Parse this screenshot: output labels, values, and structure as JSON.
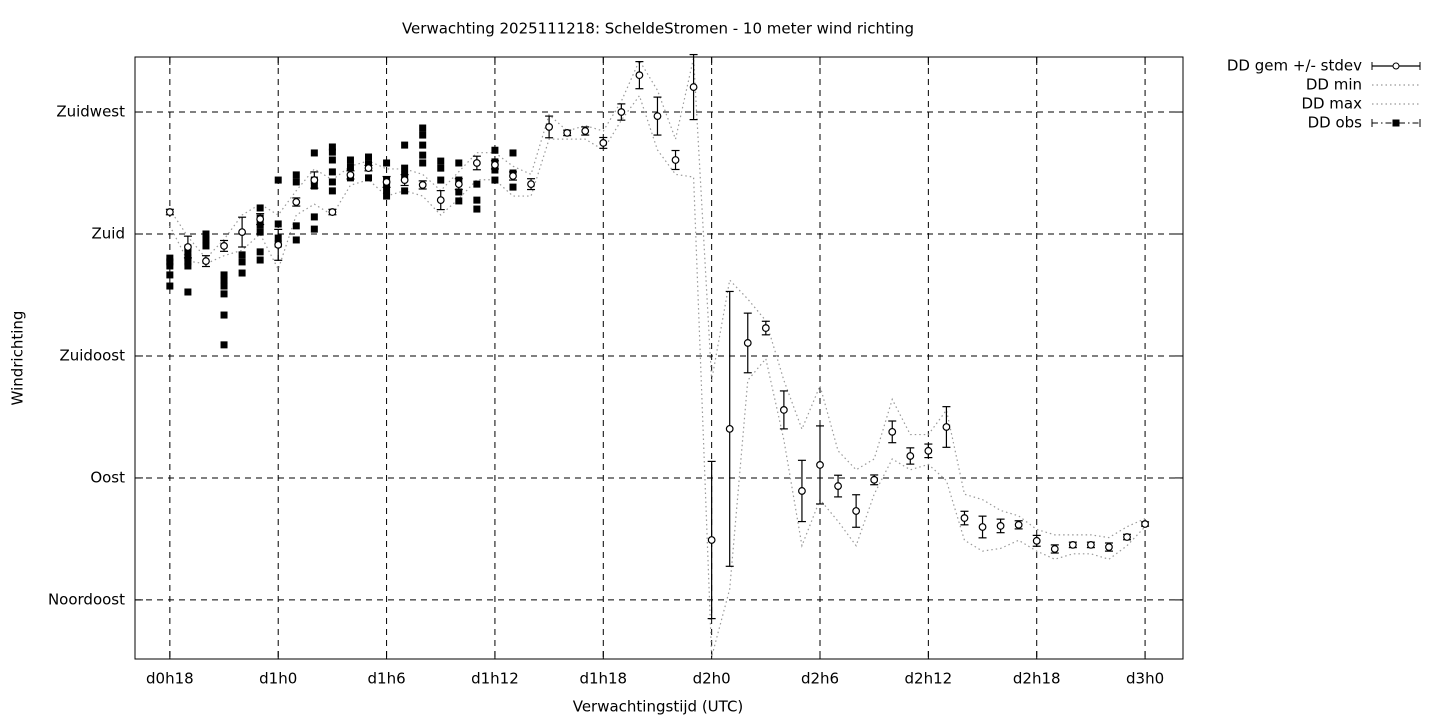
{
  "chart_data": {
    "type": "errorbar",
    "title": "Verwachting 2025111218: ScheldeStromen - 10 meter wind richting",
    "x_label": "Verwachtingstijd (UTC)",
    "y_label": "Windrichting",
    "xlim": [
      16.07,
      74.1
    ],
    "ylim": [
      23.2,
      245.3
    ],
    "xticks": [
      {
        "value": 18,
        "label": "d0h18"
      },
      {
        "value": 24,
        "label": "d1h0"
      },
      {
        "value": 30,
        "label": "d1h6"
      },
      {
        "value": 36,
        "label": "d1h12"
      },
      {
        "value": 42,
        "label": "d1h18"
      },
      {
        "value": 48,
        "label": "d2h0"
      },
      {
        "value": 54,
        "label": "d2h6"
      },
      {
        "value": 60,
        "label": "d2h12"
      },
      {
        "value": 66,
        "label": "d2h18"
      },
      {
        "value": 72,
        "label": "d3h0"
      }
    ],
    "yticks": [
      {
        "value": 45,
        "label": "Noordoost"
      },
      {
        "value": 90,
        "label": "Oost"
      },
      {
        "value": 135,
        "label": "Zuidoost"
      },
      {
        "value": 180,
        "label": "Zuid"
      },
      {
        "value": 225,
        "label": "Zuidwest"
      }
    ],
    "grid": true,
    "legend": "outside-right-top",
    "series": [
      {
        "name": "DD gem +/- stdev",
        "color": "#000000",
        "style": "errorbar",
        "x": [
          18,
          19,
          20,
          21,
          22,
          23,
          24,
          25,
          26,
          27,
          28,
          29,
          30,
          31,
          32,
          33,
          34,
          35,
          36,
          37,
          38,
          39,
          40,
          41,
          42,
          43,
          44,
          45,
          46,
          47,
          48,
          49,
          50,
          51,
          52,
          53,
          54,
          55,
          56,
          57,
          58,
          59,
          60,
          61,
          62,
          63,
          64,
          65,
          66,
          67,
          68,
          69,
          70,
          71,
          72
        ],
        "values": [
          188.1,
          175.2,
          170.0,
          175.6,
          180.7,
          185.5,
          176.0,
          191.8,
          199.9,
          188.1,
          201.8,
          204.3,
          199.2,
          199.9,
          198.1,
          192.5,
          198.4,
          206.2,
          205.5,
          201.4,
          198.4,
          219.5,
          217.3,
          218.0,
          213.6,
          225.0,
          238.6,
          223.5,
          207.3,
          234.2,
          67.1,
          108.1,
          139.8,
          145.3,
          115.1,
          85.2,
          94.8,
          87.0,
          77.8,
          89.3,
          107.0,
          98.1,
          100.0,
          108.8,
          75.2,
          71.9,
          72.3,
          72.7,
          66.8,
          63.8,
          65.3,
          65.3,
          64.5,
          68.2,
          73.0
        ],
        "errors": [
          1,
          4,
          2,
          2,
          5.5,
          2,
          5.7,
          1.5,
          3,
          1,
          1.5,
          1,
          2,
          2,
          1.5,
          3.5,
          2,
          2.5,
          1.5,
          1.5,
          2,
          4,
          1,
          1.5,
          2,
          3,
          5,
          7,
          3.5,
          12,
          29,
          50.7,
          11,
          2.5,
          7,
          11.3,
          14.4,
          4,
          6,
          1.8,
          4,
          3,
          2.5,
          7.5,
          2.5,
          4,
          2.5,
          1.5,
          2,
          1.5,
          1,
          1,
          1.5,
          1,
          0.8
        ]
      },
      {
        "name": "DD min",
        "color": "#999999",
        "style": "dotted",
        "x": [
          18,
          19,
          20,
          21,
          22,
          23,
          24,
          25,
          26,
          27,
          28,
          29,
          30,
          31,
          32,
          33,
          34,
          35,
          36,
          37,
          38,
          39,
          40,
          41,
          42,
          43,
          44,
          45,
          46,
          47,
          48,
          49,
          50,
          51,
          52,
          53,
          54,
          55,
          56,
          57,
          58,
          59,
          60,
          61,
          62,
          63,
          64,
          65,
          66,
          67,
          68,
          69,
          70,
          71,
          72
        ],
        "values": [
          183,
          170,
          169,
          172,
          174,
          180,
          167,
          187,
          191,
          187,
          198,
          200,
          194,
          196,
          194,
          187,
          193,
          200,
          200,
          194,
          194,
          215,
          215,
          215,
          211,
          222,
          231,
          211,
          202,
          201,
          24,
          49,
          126,
          134,
          104,
          65,
          82,
          74,
          65,
          84,
          97,
          93,
          95,
          89,
          67,
          63,
          64,
          67,
          63,
          60,
          62,
          62,
          60,
          65,
          72
        ]
      },
      {
        "name": "DD max",
        "color": "#999999",
        "style": "dotted",
        "x": [
          18,
          19,
          20,
          21,
          22,
          23,
          24,
          25,
          26,
          27,
          28,
          29,
          30,
          31,
          32,
          33,
          34,
          35,
          36,
          37,
          38,
          39,
          40,
          41,
          42,
          43,
          44,
          45,
          46,
          47,
          48,
          49,
          50,
          51,
          52,
          53,
          54,
          55,
          56,
          57,
          58,
          59,
          60,
          61,
          62,
          63,
          64,
          65,
          66,
          67,
          68,
          69,
          70,
          71,
          72
        ],
        "values": [
          189,
          179,
          171,
          178,
          187,
          191,
          187,
          196,
          204,
          200,
          205,
          207,
          204,
          204,
          202,
          196,
          203,
          210,
          210,
          205,
          202,
          224,
          218,
          220,
          218,
          229,
          244,
          233,
          215,
          245,
          126,
          163,
          156,
          148,
          126,
          108,
          124,
          100,
          93,
          97,
          119,
          106,
          106,
          115,
          84,
          82,
          78,
          76,
          71,
          69,
          69,
          69,
          68,
          72,
          75
        ]
      },
      {
        "name": "DD obs",
        "color": "#000000",
        "style": "points",
        "x": [
          18,
          18,
          18,
          18,
          18,
          19,
          19,
          19,
          19,
          19,
          19,
          20,
          20,
          20,
          21,
          21,
          21,
          21,
          21,
          21,
          22,
          22,
          22,
          23,
          23,
          23,
          23,
          23,
          23,
          24,
          24,
          24,
          24,
          25,
          25,
          25,
          25,
          26,
          26,
          26,
          26,
          26,
          27,
          27,
          27,
          27,
          27,
          27,
          28,
          28,
          28,
          29,
          29,
          29,
          30,
          30,
          30,
          30,
          30,
          31,
          31,
          31,
          31,
          32,
          32,
          32,
          32,
          32,
          33,
          33,
          33,
          34,
          34,
          34,
          34,
          35,
          35,
          35,
          36,
          36,
          36,
          36,
          37,
          37,
          37
        ],
        "values": [
          171.1,
          169.7,
          168.2,
          164.9,
          160.8,
          174.8,
          173.4,
          171.1,
          169.7,
          168.2,
          158.6,
          180.0,
          177.8,
          175.6,
          164.9,
          163.0,
          160.8,
          157.9,
          150.1,
          139.1,
          172.3,
          169.7,
          165.6,
          189.6,
          185.9,
          183.3,
          180.7,
          173.4,
          170.4,
          199.9,
          183.7,
          178.5,
          176.3,
          201.8,
          199.2,
          183.0,
          177.8,
          209.9,
          199.9,
          197.7,
          186.3,
          181.8,
          212.1,
          210.2,
          207.3,
          202.9,
          199.2,
          195.9,
          207.3,
          204.7,
          200.7,
          208.4,
          205.8,
          200.7,
          206.2,
          199.9,
          198.4,
          196.2,
          194.0,
          212.8,
          204.3,
          201.8,
          195.9,
          219.1,
          216.5,
          212.8,
          209.1,
          206.2,
          206.9,
          204.3,
          199.9,
          206.2,
          199.9,
          195.5,
          192.2,
          198.4,
          192.5,
          189.2,
          210.9,
          206.6,
          203.6,
          199.9,
          209.9,
          202.5,
          197.3
        ]
      }
    ]
  }
}
